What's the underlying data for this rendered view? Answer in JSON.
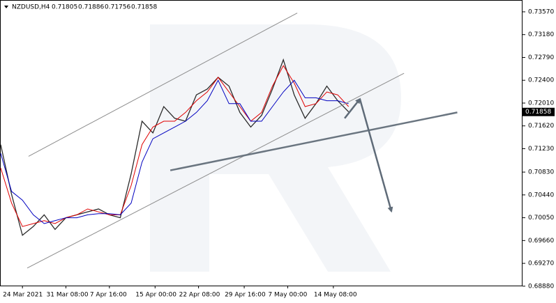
{
  "chart_data": {
    "type": "line",
    "symbol": "NZDUSD,H4",
    "ohlc": [
      0.71805,
      0.71886,
      0.71756,
      0.71858
    ],
    "current_price": 0.71858,
    "xlim": [
      0,
      240
    ],
    "xticks": [
      {
        "value": 10,
        "label": "24 Mar 2021"
      },
      {
        "value": 30,
        "label": "31 Mar 08:00"
      },
      {
        "value": 50,
        "label": "7 Apr 16:00"
      },
      {
        "value": 71,
        "label": "15 Apr 00:00"
      },
      {
        "value": 91,
        "label": "22 Apr 08:00"
      },
      {
        "value": 112,
        "label": "29 Apr 16:00"
      },
      {
        "value": 132,
        "label": "7 May 00:00"
      },
      {
        "value": 153,
        "label": "14 May 08:00"
      }
    ],
    "ylim": [
      0.6889,
      0.7376
    ],
    "yticks": [
      {
        "value": 0.7357,
        "label": "0.73570"
      },
      {
        "value": 0.7318,
        "label": "0.73180"
      },
      {
        "value": 0.7279,
        "label": "0.72790"
      },
      {
        "value": 0.724,
        "label": "0.72400"
      },
      {
        "value": 0.7201,
        "label": "0.72010"
      },
      {
        "value": 0.7162,
        "label": "0.71620"
      },
      {
        "value": 0.7123,
        "label": "0.71230"
      },
      {
        "value": 0.7083,
        "label": "0.70830"
      },
      {
        "value": 0.7044,
        "label": "0.70440"
      },
      {
        "value": 0.7005,
        "label": "0.70050"
      },
      {
        "value": 0.6966,
        "label": "0.69660"
      },
      {
        "value": 0.6927,
        "label": "0.69270"
      },
      {
        "value": 0.6888,
        "label": "0.68880"
      }
    ],
    "x": [
      0,
      5,
      10,
      15,
      20,
      25,
      30,
      35,
      40,
      45,
      50,
      55,
      60,
      65,
      70,
      75,
      80,
      85,
      90,
      95,
      100,
      105,
      110,
      115,
      120,
      125,
      130,
      135,
      140,
      145,
      150,
      155,
      160
    ],
    "series": [
      {
        "color": "#2b2b2b",
        "values": [
          0.713,
          0.7045,
          0.6975,
          0.699,
          0.701,
          0.6985,
          0.7005,
          0.701,
          0.7015,
          0.702,
          0.701,
          0.7005,
          0.708,
          0.717,
          0.715,
          0.7195,
          0.7175,
          0.717,
          0.7215,
          0.7225,
          0.7245,
          0.723,
          0.7185,
          0.716,
          0.718,
          0.7225,
          0.7275,
          0.7215,
          0.7175,
          0.72,
          0.723,
          0.7205,
          0.7186
        ]
      },
      {
        "color": "#e00000",
        "values": [
          0.709,
          0.703,
          0.699,
          0.6995,
          0.7,
          0.6995,
          0.7005,
          0.701,
          0.702,
          0.7015,
          0.701,
          0.701,
          0.706,
          0.713,
          0.716,
          0.717,
          0.717,
          0.7185,
          0.7205,
          0.722,
          0.7245,
          0.722,
          0.7195,
          0.717,
          0.7185,
          0.723,
          0.7265,
          0.7235,
          0.7195,
          0.72,
          0.722,
          0.7215,
          0.7195
        ]
      },
      {
        "color": "#0000c0",
        "values": [
          0.7115,
          0.705,
          0.7035,
          0.701,
          0.6995,
          0.7,
          0.7005,
          0.7005,
          0.701,
          0.7012,
          0.7012,
          0.701,
          0.703,
          0.71,
          0.714,
          0.715,
          0.716,
          0.717,
          0.7185,
          0.7205,
          0.724,
          0.72,
          0.72,
          0.717,
          0.717,
          0.7195,
          0.722,
          0.724,
          0.721,
          0.721,
          0.7205,
          0.7205,
          0.72
        ]
      }
    ],
    "trendlines": [
      {
        "color": "#8c8c8c",
        "x": [
          12.8,
          136.4
        ],
        "y": [
          0.711,
          0.7355
        ]
      },
      {
        "color": "#8c8c8c",
        "x": [
          12.2,
          185.5
        ],
        "y": [
          0.6919,
          0.7252
        ]
      },
      {
        "color": "#6a7580",
        "x": [
          78,
          210
        ],
        "y": [
          0.7086,
          0.7185
        ]
      },
      {
        "color": "#5f6b78",
        "x": [
          158.2,
          165.2
        ],
        "y": [
          0.7175,
          0.7208
        ]
      },
      {
        "color": "#5f6b78",
        "x": [
          165.2,
          179.7
        ],
        "y": [
          0.7208,
          0.7016
        ]
      }
    ]
  }
}
